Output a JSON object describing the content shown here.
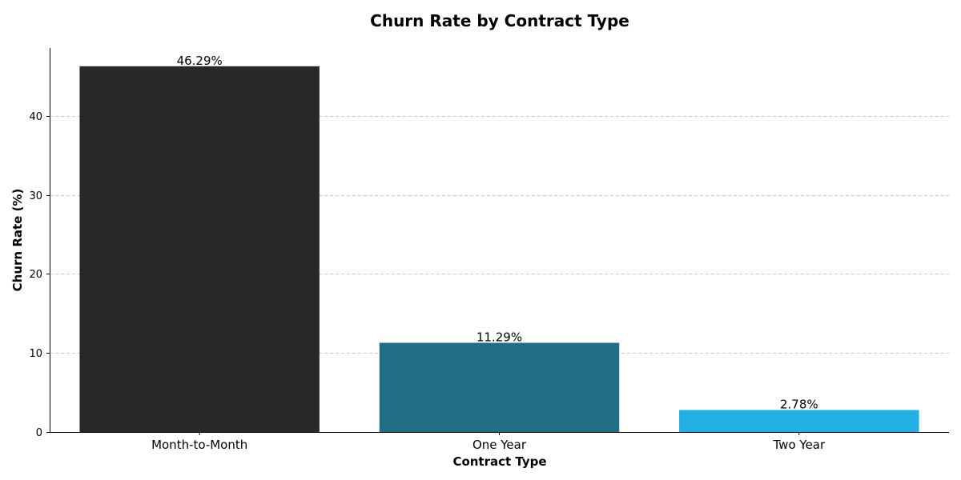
{
  "chart_data": {
    "type": "bar",
    "title": "Churn Rate by Contract Type",
    "xlabel": "Contract Type",
    "ylabel": "Churn Rate (%)",
    "categories": [
      "Month-to-Month",
      "One Year",
      "Two Year"
    ],
    "values": [
      46.29,
      11.29,
      2.78
    ],
    "data_labels": [
      "46.29%",
      "11.29%",
      "2.78%"
    ],
    "colors": [
      "#26282a",
      "#226e87",
      "#22afe1"
    ],
    "ylim": [
      0,
      48.6
    ],
    "yticks": [
      0,
      10,
      20,
      30,
      40
    ],
    "ytick_labels": [
      "0",
      "10",
      "20",
      "30",
      "40"
    ],
    "grid": "y-dashed",
    "legend": "none"
  }
}
